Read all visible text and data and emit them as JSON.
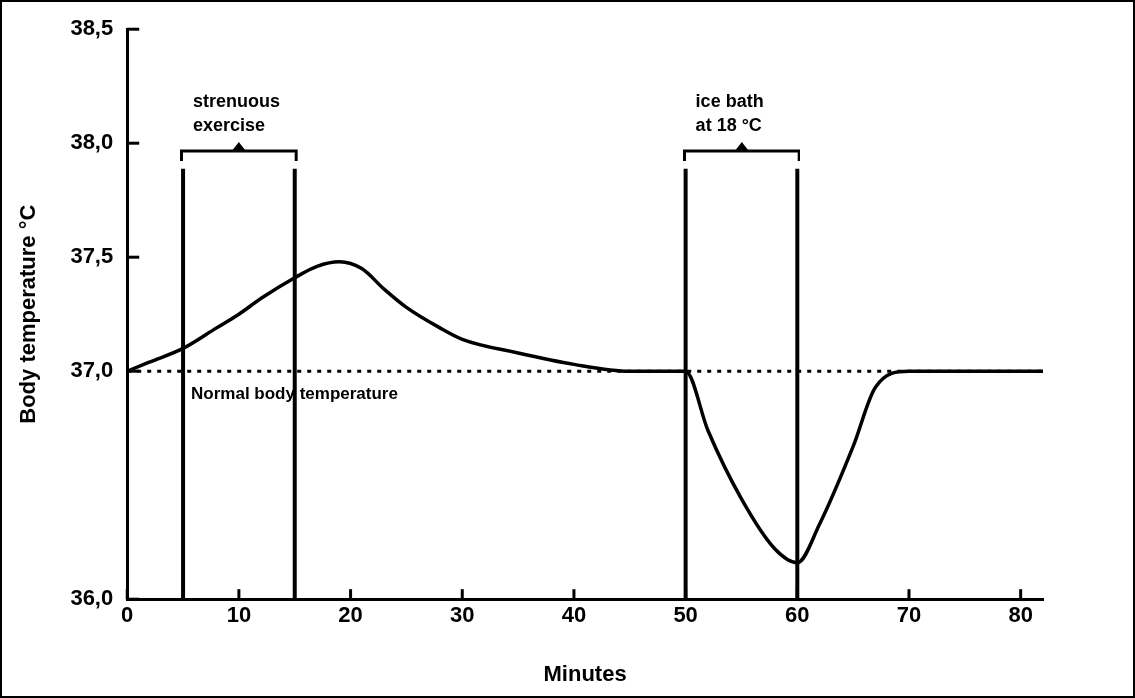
{
  "chart_data": {
    "type": "line",
    "xlabel": "Minutes",
    "ylabel": "Body temperature °C",
    "x": [
      0,
      2,
      5,
      8,
      10,
      12,
      15,
      17,
      19,
      21,
      23,
      25,
      28,
      30,
      35,
      40,
      45,
      50,
      52,
      55,
      58,
      60,
      62,
      65,
      67,
      70,
      75,
      80,
      82
    ],
    "series": [
      {
        "color": "#000000",
        "values": [
          37.0,
          37.04,
          37.1,
          37.19,
          37.25,
          37.32,
          37.41,
          37.46,
          37.48,
          37.45,
          37.36,
          37.28,
          37.19,
          37.14,
          37.08,
          37.03,
          37.0,
          37.0,
          36.74,
          36.44,
          36.22,
          36.16,
          36.33,
          36.67,
          36.93,
          37.0,
          37.0,
          37.0,
          37.0
        ]
      }
    ],
    "xlim": [
      0,
      82
    ],
    "xticks": [
      0,
      10,
      20,
      30,
      40,
      50,
      60,
      70,
      80
    ],
    "ylim": [
      36,
      38.5
    ],
    "yticks": [
      {
        "value": 36,
        "label": "36,0"
      },
      {
        "value": 37,
        "label": "37,0"
      },
      {
        "value": 37.5,
        "label": "37,5"
      },
      {
        "value": 38,
        "label": "38,0"
      },
      {
        "value": 38.5,
        "label": "38,5"
      }
    ],
    "ref_lines": [
      {
        "axis": "y",
        "value": 37,
        "label": "Normal body temperature",
        "line_style": "dotted",
        "color": "#000000"
      },
      {
        "axis": "x",
        "value": 5,
        "color": "#000000"
      },
      {
        "axis": "x",
        "value": 15,
        "color": "#000000"
      },
      {
        "axis": "x",
        "value": 50,
        "color": "#000000"
      },
      {
        "axis": "x",
        "value": 60,
        "color": "#000000"
      }
    ],
    "annotations": [
      "strenuous\nexercise",
      "ice bath\nat 18 °C"
    ],
    "grid": false,
    "legend": false,
    "marker": "none",
    "line_style": "solid"
  }
}
